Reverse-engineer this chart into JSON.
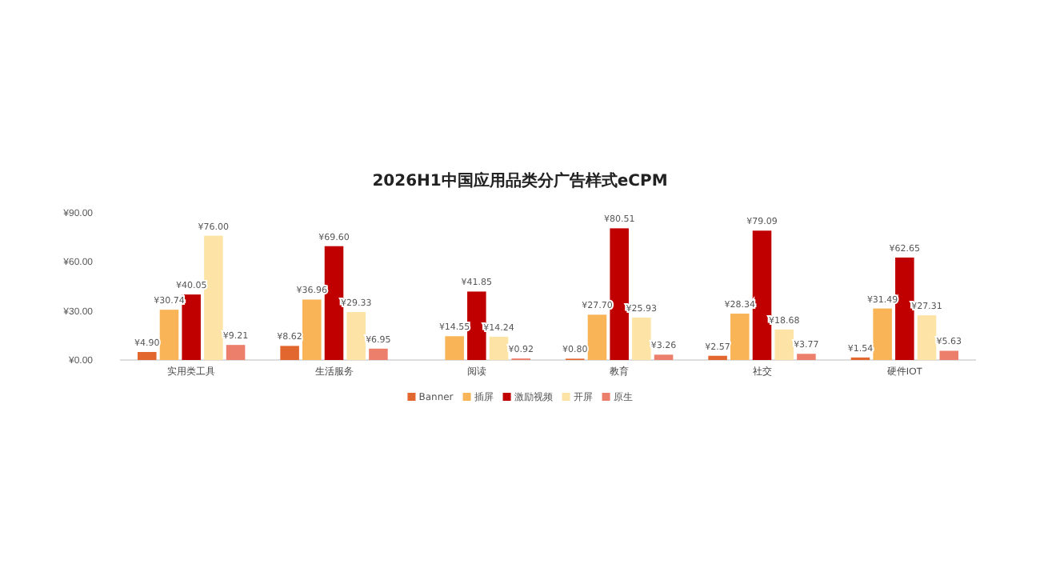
{
  "chart_data": {
    "type": "bar",
    "title": "2026H1中国应用品类分广告样式eCPM",
    "categories": [
      "实用类工具",
      "生活服务",
      "阅读",
      "教育",
      "社交",
      "硬件IOT"
    ],
    "series": [
      {
        "name": "Banner",
        "color": "#e2672e",
        "values": [
          4.9,
          8.62,
          null,
          0.8,
          2.57,
          1.54
        ],
        "value_labels": [
          "¥4.90",
          "¥8.62",
          null,
          "¥0.80",
          "¥2.57",
          "¥1.54"
        ]
      },
      {
        "name": "插屏",
        "color": "#f8b456",
        "values": [
          30.74,
          36.96,
          14.55,
          27.7,
          28.34,
          31.49
        ],
        "value_labels": [
          "¥30.74",
          "¥36.96",
          "¥14.55",
          "¥27.70",
          "¥28.34",
          "¥31.49"
        ]
      },
      {
        "name": "激励视频",
        "color": "#c00000",
        "values": [
          40.05,
          69.6,
          41.85,
          80.51,
          79.09,
          62.65
        ],
        "value_labels": [
          "¥40.05",
          "¥69.60",
          "¥41.85",
          "¥80.51",
          "¥79.09",
          "¥62.65"
        ]
      },
      {
        "name": "开屏",
        "color": "#fde4a6",
        "values": [
          76.0,
          29.33,
          14.24,
          25.93,
          18.68,
          27.31
        ],
        "value_labels": [
          "¥76.00",
          "¥29.33",
          "¥14.24",
          "¥25.93",
          "¥18.68",
          "¥27.31"
        ]
      },
      {
        "name": "原生",
        "color": "#ec7f6c",
        "values": [
          9.21,
          6.95,
          0.92,
          3.26,
          3.77,
          5.63
        ],
        "value_labels": [
          "¥9.21",
          "¥6.95",
          "¥0.92",
          "¥3.26",
          "¥3.77",
          "¥5.63"
        ]
      }
    ],
    "ylim": [
      0,
      90
    ],
    "yticks": [
      {
        "value": 0,
        "label": "¥0.00"
      },
      {
        "value": 30,
        "label": "¥30.00"
      },
      {
        "value": 60,
        "label": "¥60.00"
      },
      {
        "value": 90,
        "label": "¥90.00"
      }
    ],
    "grid": false,
    "legend": "bottom"
  }
}
